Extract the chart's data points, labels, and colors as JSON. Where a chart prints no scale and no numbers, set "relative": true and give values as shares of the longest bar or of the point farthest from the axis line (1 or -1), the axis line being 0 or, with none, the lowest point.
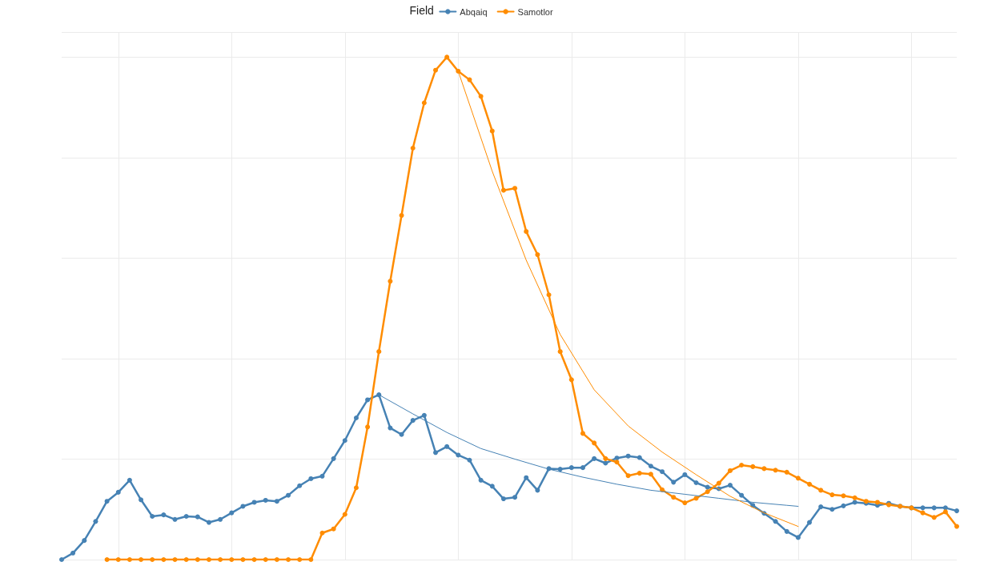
{
  "chart_data": {
    "type": "line",
    "relative": true,
    "legend_title": "Field",
    "legend": "top",
    "grid": true,
    "marker": "circle",
    "categories": [
      null,
      null,
      null,
      null,
      null,
      null,
      null,
      null,
      null,
      null,
      null,
      null,
      null,
      null,
      null,
      null,
      null,
      null,
      null,
      null,
      null,
      null,
      null,
      null,
      null,
      null,
      null,
      null,
      null,
      null,
      null,
      null,
      null,
      null,
      null,
      null,
      null,
      null,
      null,
      null,
      null,
      null,
      null,
      null,
      null,
      null,
      null,
      null,
      null,
      null,
      null,
      null,
      null,
      null,
      null,
      null,
      null,
      null,
      null,
      null,
      null,
      null,
      null,
      null,
      null,
      null,
      null,
      null,
      null,
      null,
      null,
      null,
      null,
      null,
      null,
      null,
      null,
      null,
      null,
      null
    ],
    "series": [
      {
        "name": "Abqaiq",
        "color": "#4682b4",
        "values": [
          0,
          0.013,
          0.038,
          0.076,
          0.116,
          0.134,
          0.158,
          0.119,
          0.086,
          0.089,
          0.08,
          0.086,
          0.085,
          0.074,
          0.08,
          0.093,
          0.106,
          0.114,
          0.118,
          0.116,
          0.128,
          0.147,
          0.161,
          0.166,
          0.201,
          0.237,
          0.282,
          0.318,
          0.328,
          0.262,
          0.249,
          0.277,
          0.287,
          0.213,
          0.225,
          0.208,
          0.198,
          0.158,
          0.146,
          0.121,
          0.124,
          0.163,
          0.138,
          0.181,
          0.18,
          0.183,
          0.183,
          0.201,
          0.192,
          0.202,
          0.206,
          0.203,
          0.186,
          0.175,
          0.154,
          0.169,
          0.153,
          0.144,
          0.141,
          0.148,
          0.128,
          0.108,
          0.092,
          0.076,
          0.056,
          0.044,
          0.074,
          0.105,
          0.1,
          0.107,
          0.114,
          0.112,
          0.108,
          0.112,
          0.106,
          0.103,
          0.103,
          0.103,
          0.103,
          0.097
        ]
      },
      {
        "name": "Samotlor",
        "color": "#ff8c00",
        "values": [
          null,
          null,
          null,
          null,
          0,
          0,
          0,
          0,
          0,
          0,
          0,
          0,
          0,
          0,
          0,
          0,
          0,
          0,
          0,
          0,
          0,
          0,
          0,
          0.053,
          0.061,
          0.09,
          0.143,
          0.264,
          0.414,
          0.554,
          0.685,
          0.819,
          0.909,
          0.974,
          1,
          0.972,
          0.955,
          0.922,
          0.853,
          0.735,
          0.739,
          0.653,
          0.607,
          0.527,
          0.414,
          0.358,
          0.251,
          0.232,
          0.201,
          0.194,
          0.167,
          0.172,
          0.17,
          0.139,
          0.124,
          0.113,
          0.122,
          0.135,
          0.152,
          0.177,
          0.188,
          0.185,
          0.181,
          0.178,
          0.174,
          0.162,
          0.15,
          0.138,
          0.129,
          0.127,
          0.123,
          0.116,
          0.114,
          0.109,
          0.106,
          0.103,
          0.093,
          0.084,
          0.095,
          0.066
        ]
      },
      {
        "type": "line",
        "marker": "none",
        "color": "#4682b4",
        "values": [
          null,
          null,
          null,
          null,
          null,
          null,
          null,
          null,
          null,
          null,
          null,
          null,
          null,
          null,
          null,
          null,
          null,
          null,
          null,
          null,
          null,
          null,
          null,
          null,
          null,
          null,
          null,
          null,
          0.328,
          null,
          null,
          0.29,
          null,
          null,
          0.253,
          null,
          null,
          0.221,
          null,
          null,
          0.2,
          null,
          null,
          0.18,
          null,
          null,
          0.164,
          null,
          null,
          0.15,
          null,
          null,
          0.138,
          null,
          null,
          0.13,
          null,
          null,
          0.122,
          null,
          null,
          0.114,
          null,
          null,
          0.108,
          0.106,
          null,
          null,
          null,
          null,
          null,
          null,
          null,
          null,
          null,
          null,
          null,
          null,
          null,
          null
        ]
      },
      {
        "type": "line",
        "marker": "none",
        "color": "#ff8c00",
        "values": [
          null,
          null,
          null,
          null,
          null,
          null,
          null,
          null,
          null,
          null,
          null,
          null,
          null,
          null,
          null,
          null,
          null,
          null,
          null,
          null,
          null,
          null,
          null,
          null,
          null,
          null,
          null,
          null,
          null,
          null,
          null,
          null,
          null,
          null,
          null,
          0.972,
          null,
          null,
          0.773,
          null,
          null,
          0.596,
          null,
          null,
          0.448,
          null,
          null,
          0.338,
          null,
          null,
          0.266,
          null,
          null,
          0.214,
          null,
          null,
          0.169,
          null,
          null,
          0.126,
          null,
          null,
          0.093,
          null,
          null,
          0.066,
          null,
          null,
          null,
          null,
          null,
          null,
          null,
          null,
          null,
          null,
          null,
          null,
          null,
          null
        ]
      }
    ]
  }
}
